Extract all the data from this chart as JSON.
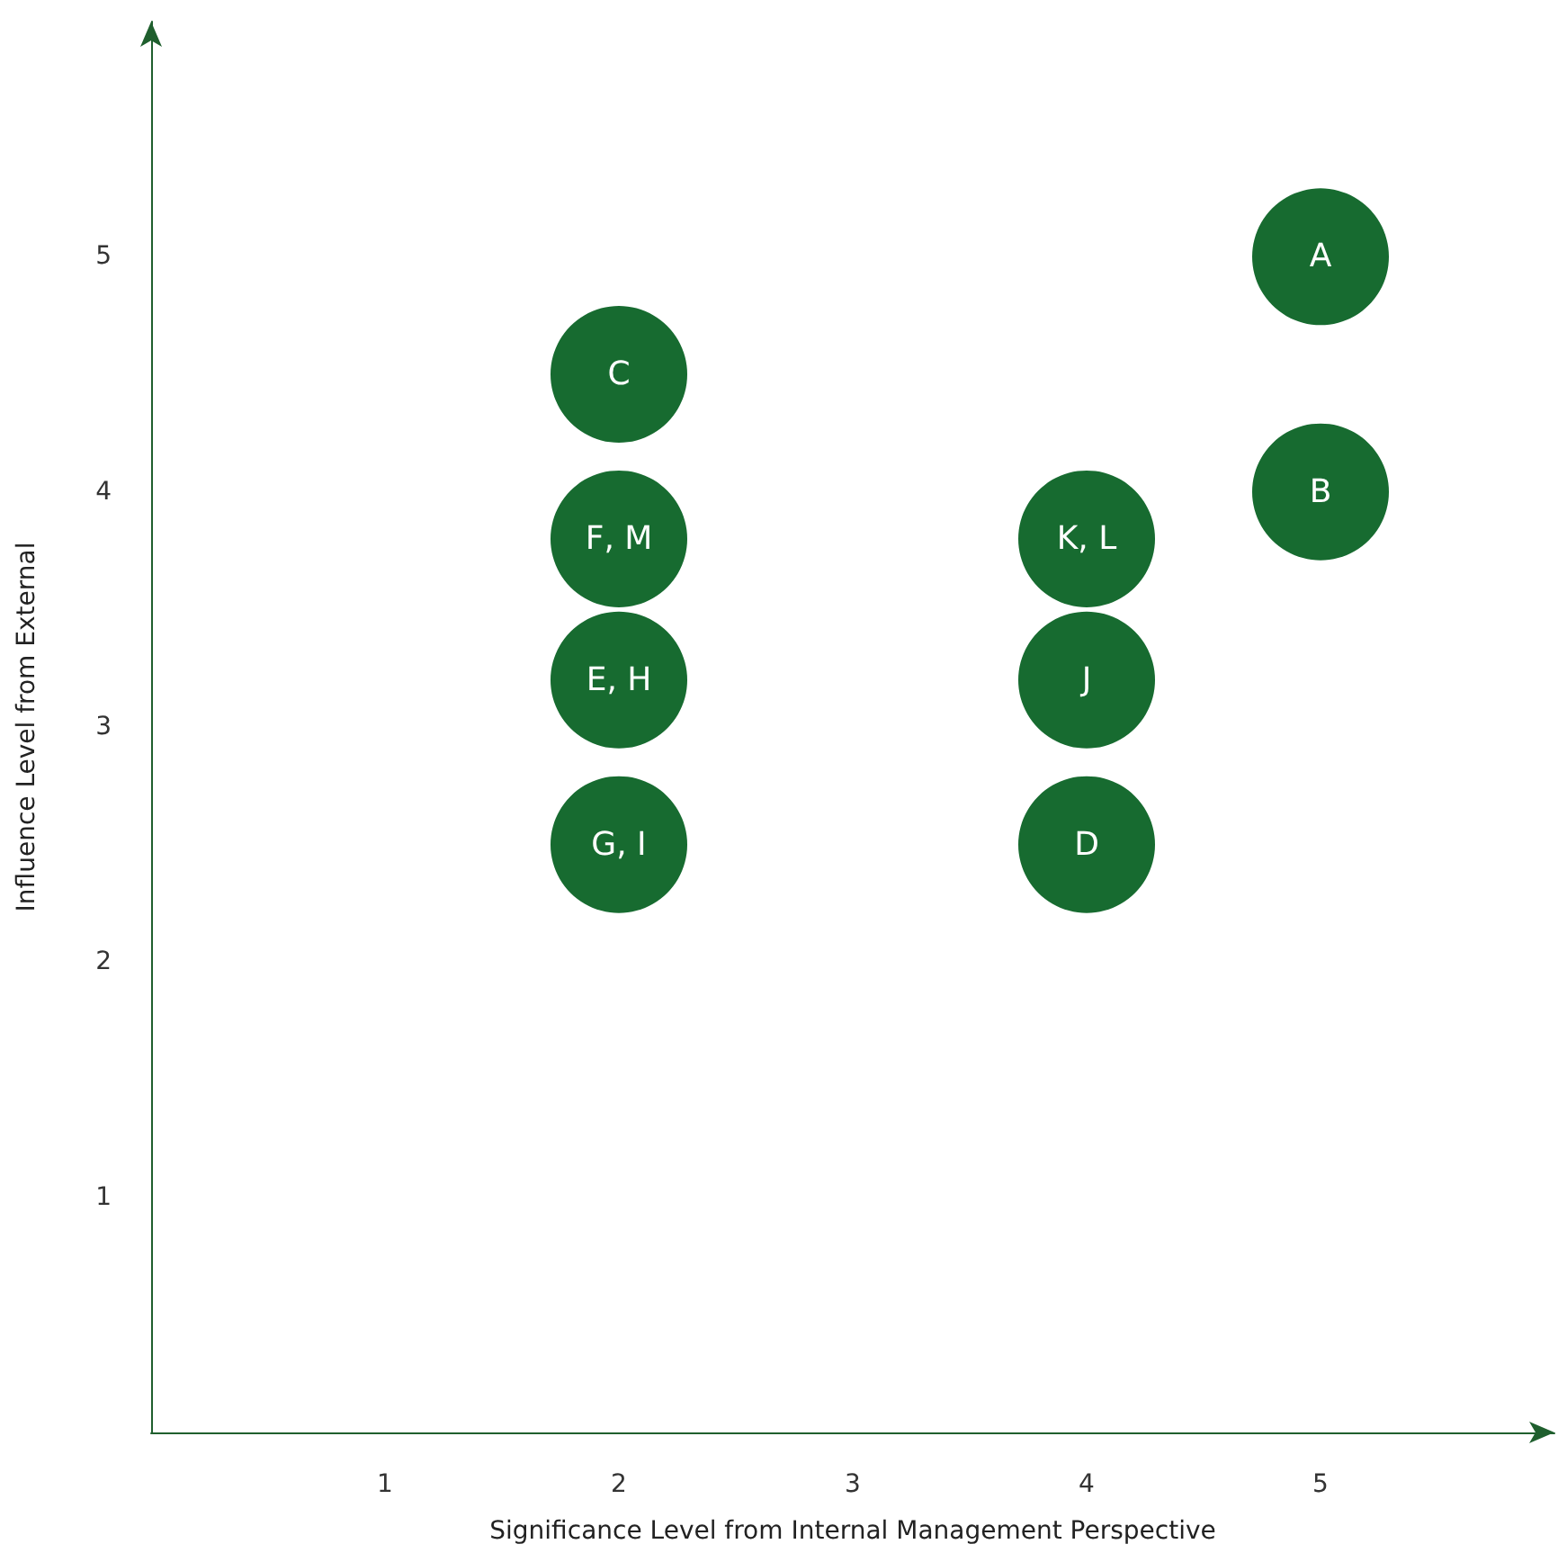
{
  "chart_data": {
    "type": "scatter",
    "xlabel": "Significance Level from Internal Management Perspective",
    "ylabel": "Influence Level from External",
    "x": [
      5,
      5,
      2,
      2,
      2,
      2,
      4,
      4,
      4
    ],
    "values": [
      5,
      4,
      4.5,
      3.8,
      3.2,
      2.5,
      3.8,
      3.2,
      2.5
    ],
    "value_labels": [
      "A",
      "B",
      "C",
      "F, M",
      "E, H",
      "G, I",
      "K, L",
      "J",
      "D"
    ],
    "color": "#176b30",
    "marker": "circle",
    "xlim": [
      0,
      6
    ],
    "xticks": [
      1,
      2,
      3,
      4,
      5
    ],
    "ylim": [
      0,
      6
    ],
    "yticks": [
      1,
      2,
      3,
      4,
      5
    ],
    "grid": false
  }
}
